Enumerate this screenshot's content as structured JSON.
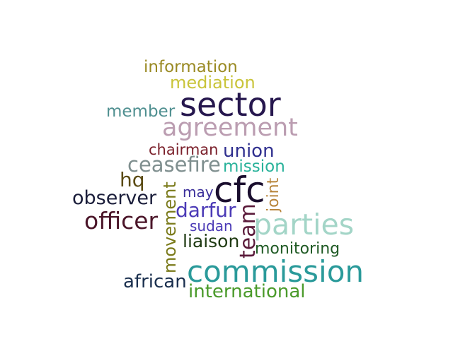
{
  "words": {
    "information": {
      "text": "information",
      "color": "#9a8a23"
    },
    "mediation": {
      "text": "mediation",
      "color": "#c9c43a"
    },
    "member": {
      "text": "member",
      "color": "#4f8f90"
    },
    "sector": {
      "text": "sector",
      "color": "#26174e"
    },
    "agreement": {
      "text": "agreement",
      "color": "#bb9db1"
    },
    "chairman": {
      "text": "chairman",
      "color": "#7a1f2a"
    },
    "union": {
      "text": "union",
      "color": "#30308f"
    },
    "ceasefire": {
      "text": "ceasefire",
      "color": "#7f8f8f"
    },
    "mission": {
      "text": "mission",
      "color": "#28b29a"
    },
    "hq": {
      "text": "hq",
      "color": "#5a4a12"
    },
    "cfc": {
      "text": "cfc",
      "color": "#1a0e2e"
    },
    "may": {
      "text": "may",
      "color": "#3b2f9a"
    },
    "observer": {
      "text": "observer",
      "color": "#1a1d3a"
    },
    "darfur": {
      "text": "darfur",
      "color": "#4b3ab6"
    },
    "officer": {
      "text": "officer",
      "color": "#4a1428"
    },
    "sudan": {
      "text": "sudan",
      "color": "#4b3ab6"
    },
    "parties": {
      "text": "parties",
      "color": "#a3d5c7"
    },
    "liaison": {
      "text": "liaison",
      "color": "#1f3a12"
    },
    "monitoring": {
      "text": "monitoring",
      "color": "#1f5a24"
    },
    "commission": {
      "text": "commission",
      "color": "#2a9a9a"
    },
    "african": {
      "text": "african",
      "color": "#1a2f4e"
    },
    "international": {
      "text": "international",
      "color": "#4a9a2a"
    },
    "movement": {
      "text": "movement",
      "color": "#7a7a1a"
    },
    "team": {
      "text": "team",
      "color": "#5a1a3a"
    },
    "joint": {
      "text": "joint",
      "color": "#b7843a"
    }
  }
}
